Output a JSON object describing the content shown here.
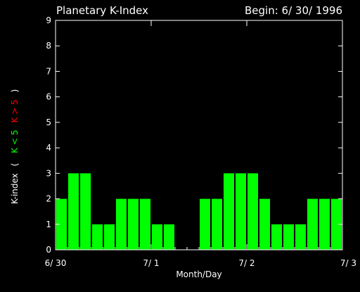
{
  "header": {
    "title": "Planetary K-Index",
    "begin": "Begin: 6/ 30/ 1996"
  },
  "axes": {
    "xlabel": "Month/Day",
    "ylabel_parts": [
      {
        "text": "K-index",
        "color": "#ffffff"
      },
      {
        "text": "( ",
        "color": "#ffffff"
      },
      {
        "text": "K < 5",
        "color": "#00ff00"
      },
      {
        "text": "K > 5",
        "color": "#ff0000"
      },
      {
        "text": ")",
        "color": "#ffffff"
      }
    ]
  },
  "colors": {
    "background": "#000000",
    "bar_low": "#00ff00",
    "bar_high": "#ff0000",
    "axis": "#ffffff"
  },
  "chart_data": {
    "type": "bar",
    "title": "Planetary K-Index",
    "xlabel": "Month/Day",
    "ylim": [
      0,
      9
    ],
    "yticks": [
      0,
      1,
      2,
      3,
      4,
      5,
      6,
      7,
      8,
      9
    ],
    "x_tick_labels": [
      "6/ 30",
      "7/ 1",
      "7/ 2",
      "7/ 3"
    ],
    "interval_hours": 3,
    "values": [
      2,
      3,
      3,
      1,
      1,
      2,
      2,
      2,
      1,
      1,
      0,
      0,
      2,
      2,
      3,
      3,
      3,
      2,
      1,
      1,
      1,
      2,
      2,
      2
    ]
  }
}
